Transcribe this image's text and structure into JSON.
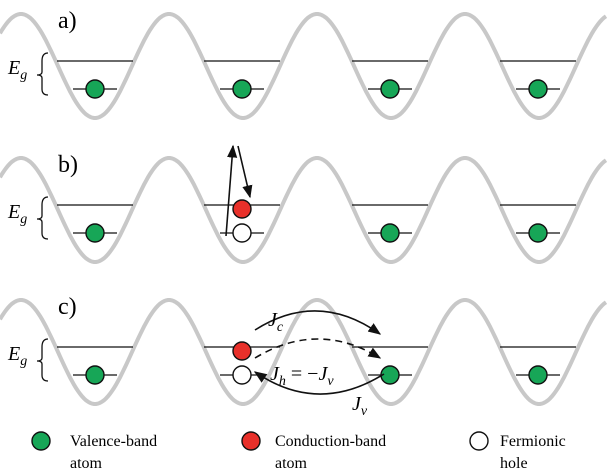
{
  "panels": [
    {
      "label": "a)",
      "gap_label": {
        "symbol": "E",
        "subscript": "g"
      }
    },
    {
      "label": "b)",
      "gap_label": {
        "symbol": "E",
        "subscript": "g"
      }
    },
    {
      "label": "c)",
      "gap_label": {
        "symbol": "E",
        "subscript": "g"
      }
    }
  ],
  "currents": {
    "conduction": {
      "symbol": "J",
      "subscript": "c"
    },
    "hole": {
      "lhs": {
        "symbol": "J",
        "subscript": "h"
      },
      "relation": " = −",
      "rhs": {
        "symbol": "J",
        "subscript": "v"
      }
    },
    "valence": {
      "symbol": "J",
      "subscript": "v"
    }
  },
  "legend": [
    {
      "line1": "Valence-band",
      "line2": "atom"
    },
    {
      "line1": "Conduction-band",
      "line2": "atom"
    },
    {
      "line1": "Fermionic",
      "line2": "hole"
    }
  ]
}
